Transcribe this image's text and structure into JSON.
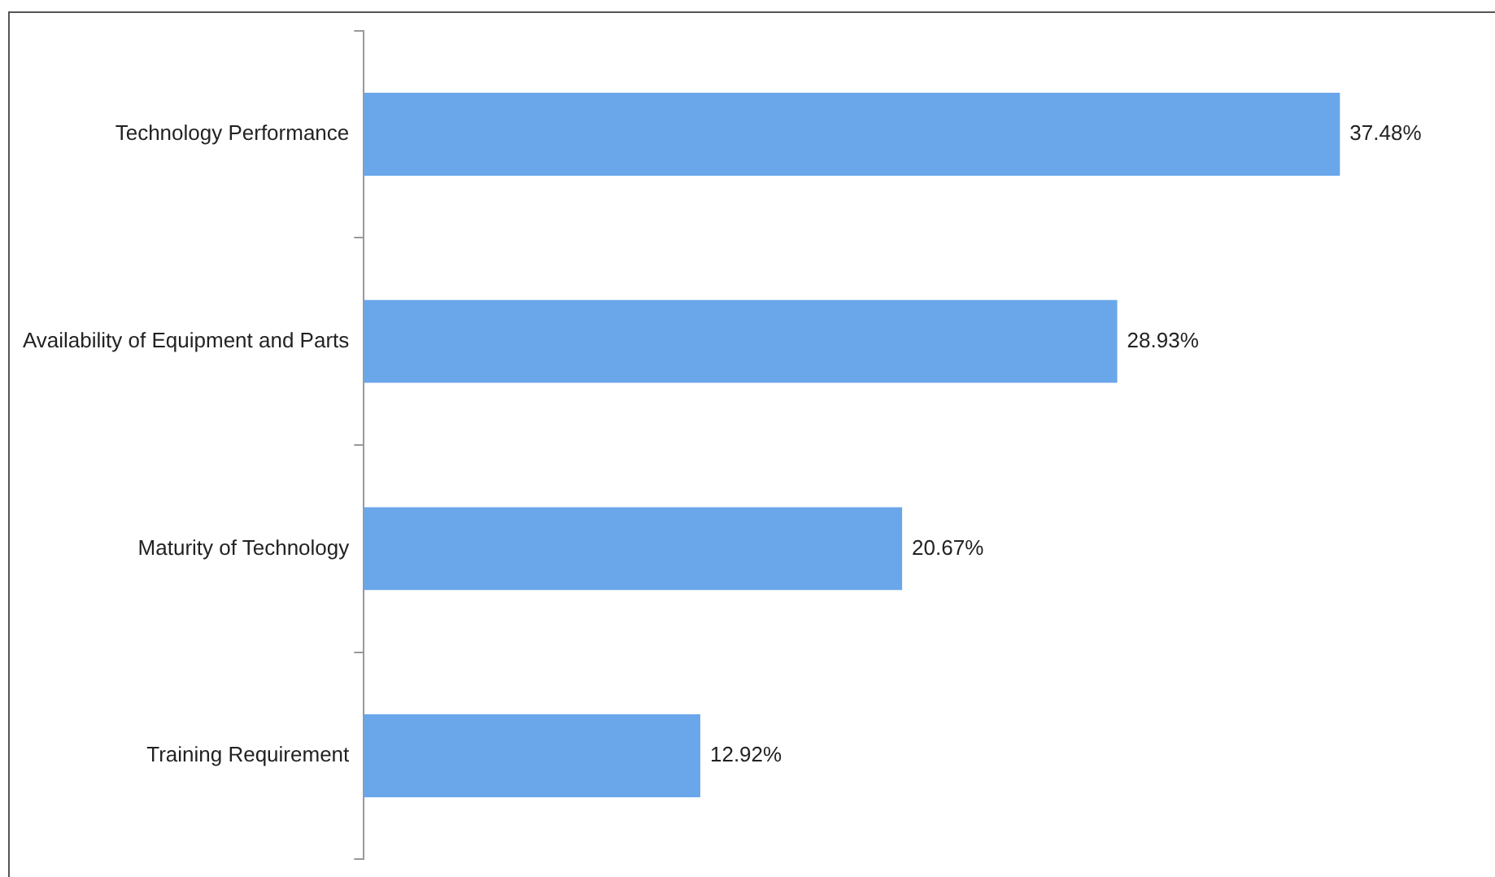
{
  "chart_data": {
    "type": "bar",
    "orientation": "horizontal",
    "categories": [
      "Technology Performance",
      "Availability of Equipment and Parts",
      "Maturity of Technology",
      "Training Requirement"
    ],
    "values": [
      37.48,
      28.93,
      20.67,
      12.92
    ],
    "value_labels": [
      "37.48%",
      "28.93%",
      "20.67%",
      "12.92%"
    ],
    "color": "#6aa6ea",
    "legend": false
  }
}
